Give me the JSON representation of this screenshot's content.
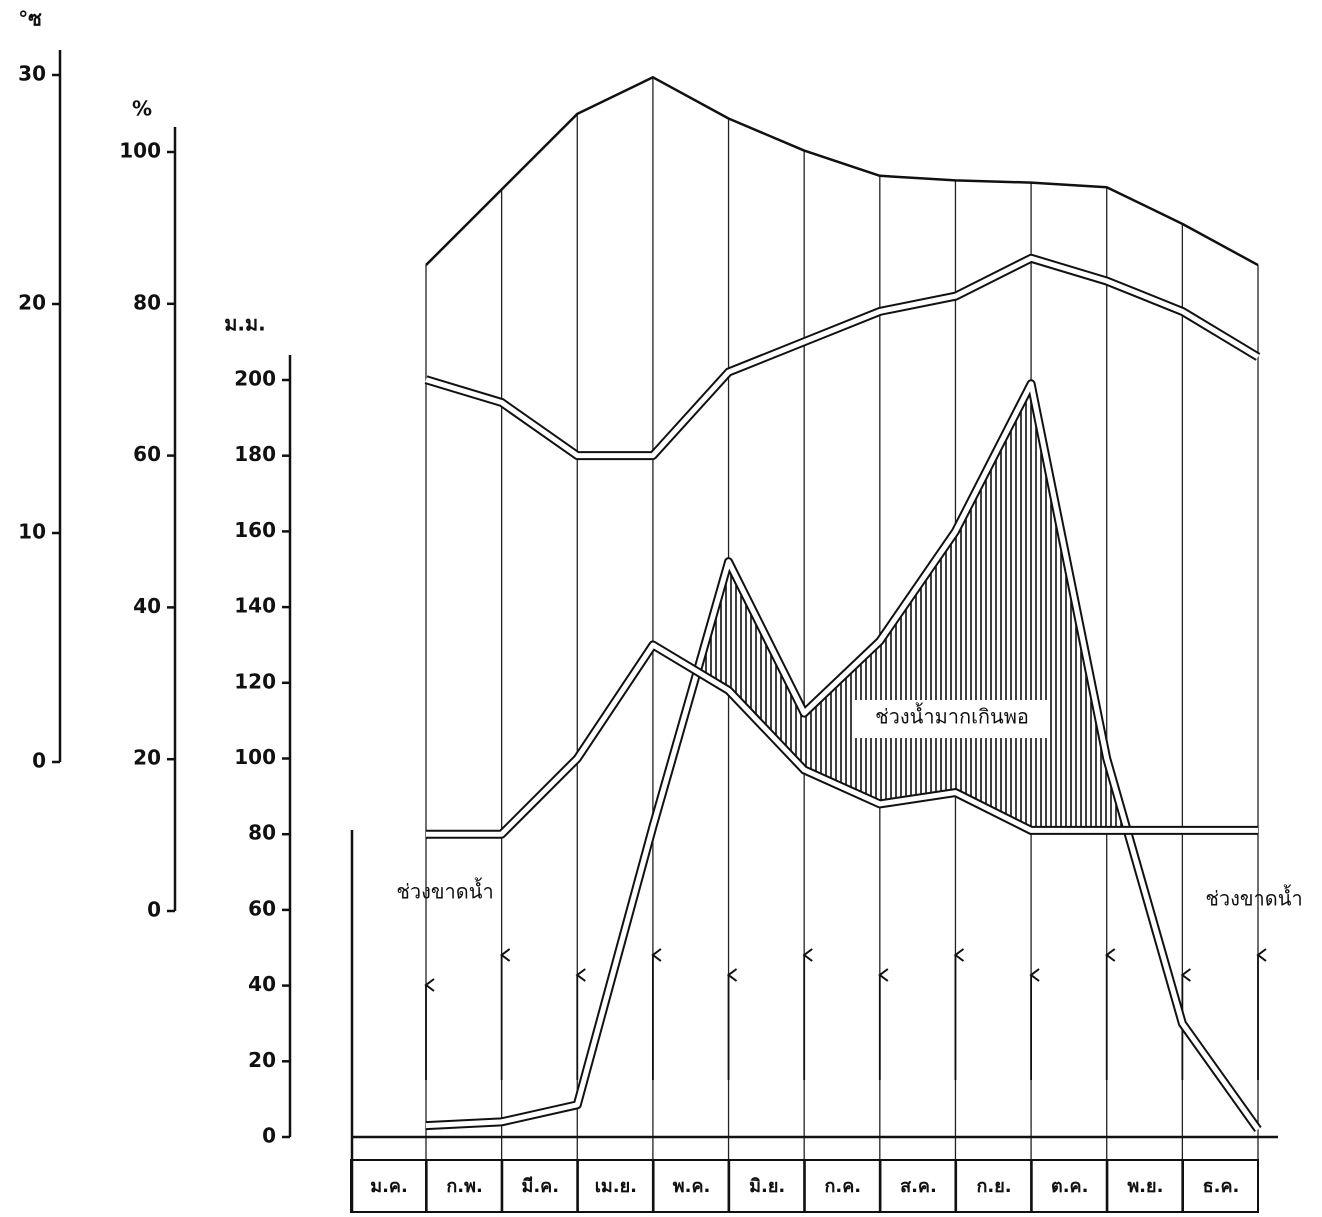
{
  "chart_data": {
    "type": "line",
    "y3_title": "°ซ",
    "y2_title": "%",
    "y_title": "ม.ม.",
    "categories": [
      "ม.ค.",
      "ก.พ.",
      "มี.ค.",
      "เม.ย.",
      "พ.ค.",
      "มิ.ย.",
      "ก.ค.",
      "ส.ค.",
      "ก.ย.",
      "ต.ค.",
      "พ.ย.",
      "ธ.ค."
    ],
    "series": [
      {
        "axis": "y3",
        "color": "#111111",
        "values": [
          21.7,
          25.0,
          28.3,
          29.9,
          28.1,
          26.7,
          25.6,
          25.4,
          25.3,
          25.1,
          23.5,
          21.7
        ]
      },
      {
        "axis": "y2",
        "color": "#111111",
        "values": [
          70,
          67,
          60,
          60,
          71,
          75,
          79,
          81,
          86,
          83,
          79,
          73
        ]
      },
      {
        "axis": "y",
        "color": "#111111",
        "values": [
          3,
          4,
          8.5,
          82,
          152,
          112,
          131,
          160,
          199,
          100,
          30,
          2
        ]
      },
      {
        "axis": "y",
        "color": "#111111",
        "values": [
          80,
          80,
          100,
          130,
          118,
          97,
          88,
          91,
          81,
          81,
          81,
          81
        ]
      }
    ],
    "ylim": [
      0,
      200
    ],
    "yticks": [
      0,
      20,
      40,
      60,
      80,
      100,
      120,
      140,
      160,
      180,
      200
    ],
    "y2lim": [
      0,
      100
    ],
    "y2ticks": [
      0,
      20,
      40,
      60,
      80,
      100
    ],
    "y3lim": [
      0,
      30
    ],
    "y3ticks": [
      0,
      10,
      20,
      30
    ],
    "annotations": [
      "ช่วงขาดน้ำ",
      "ช่วงน้ำมากเกินพอ",
      "ช่วงขาดน้ำ"
    ],
    "grid": true
  }
}
